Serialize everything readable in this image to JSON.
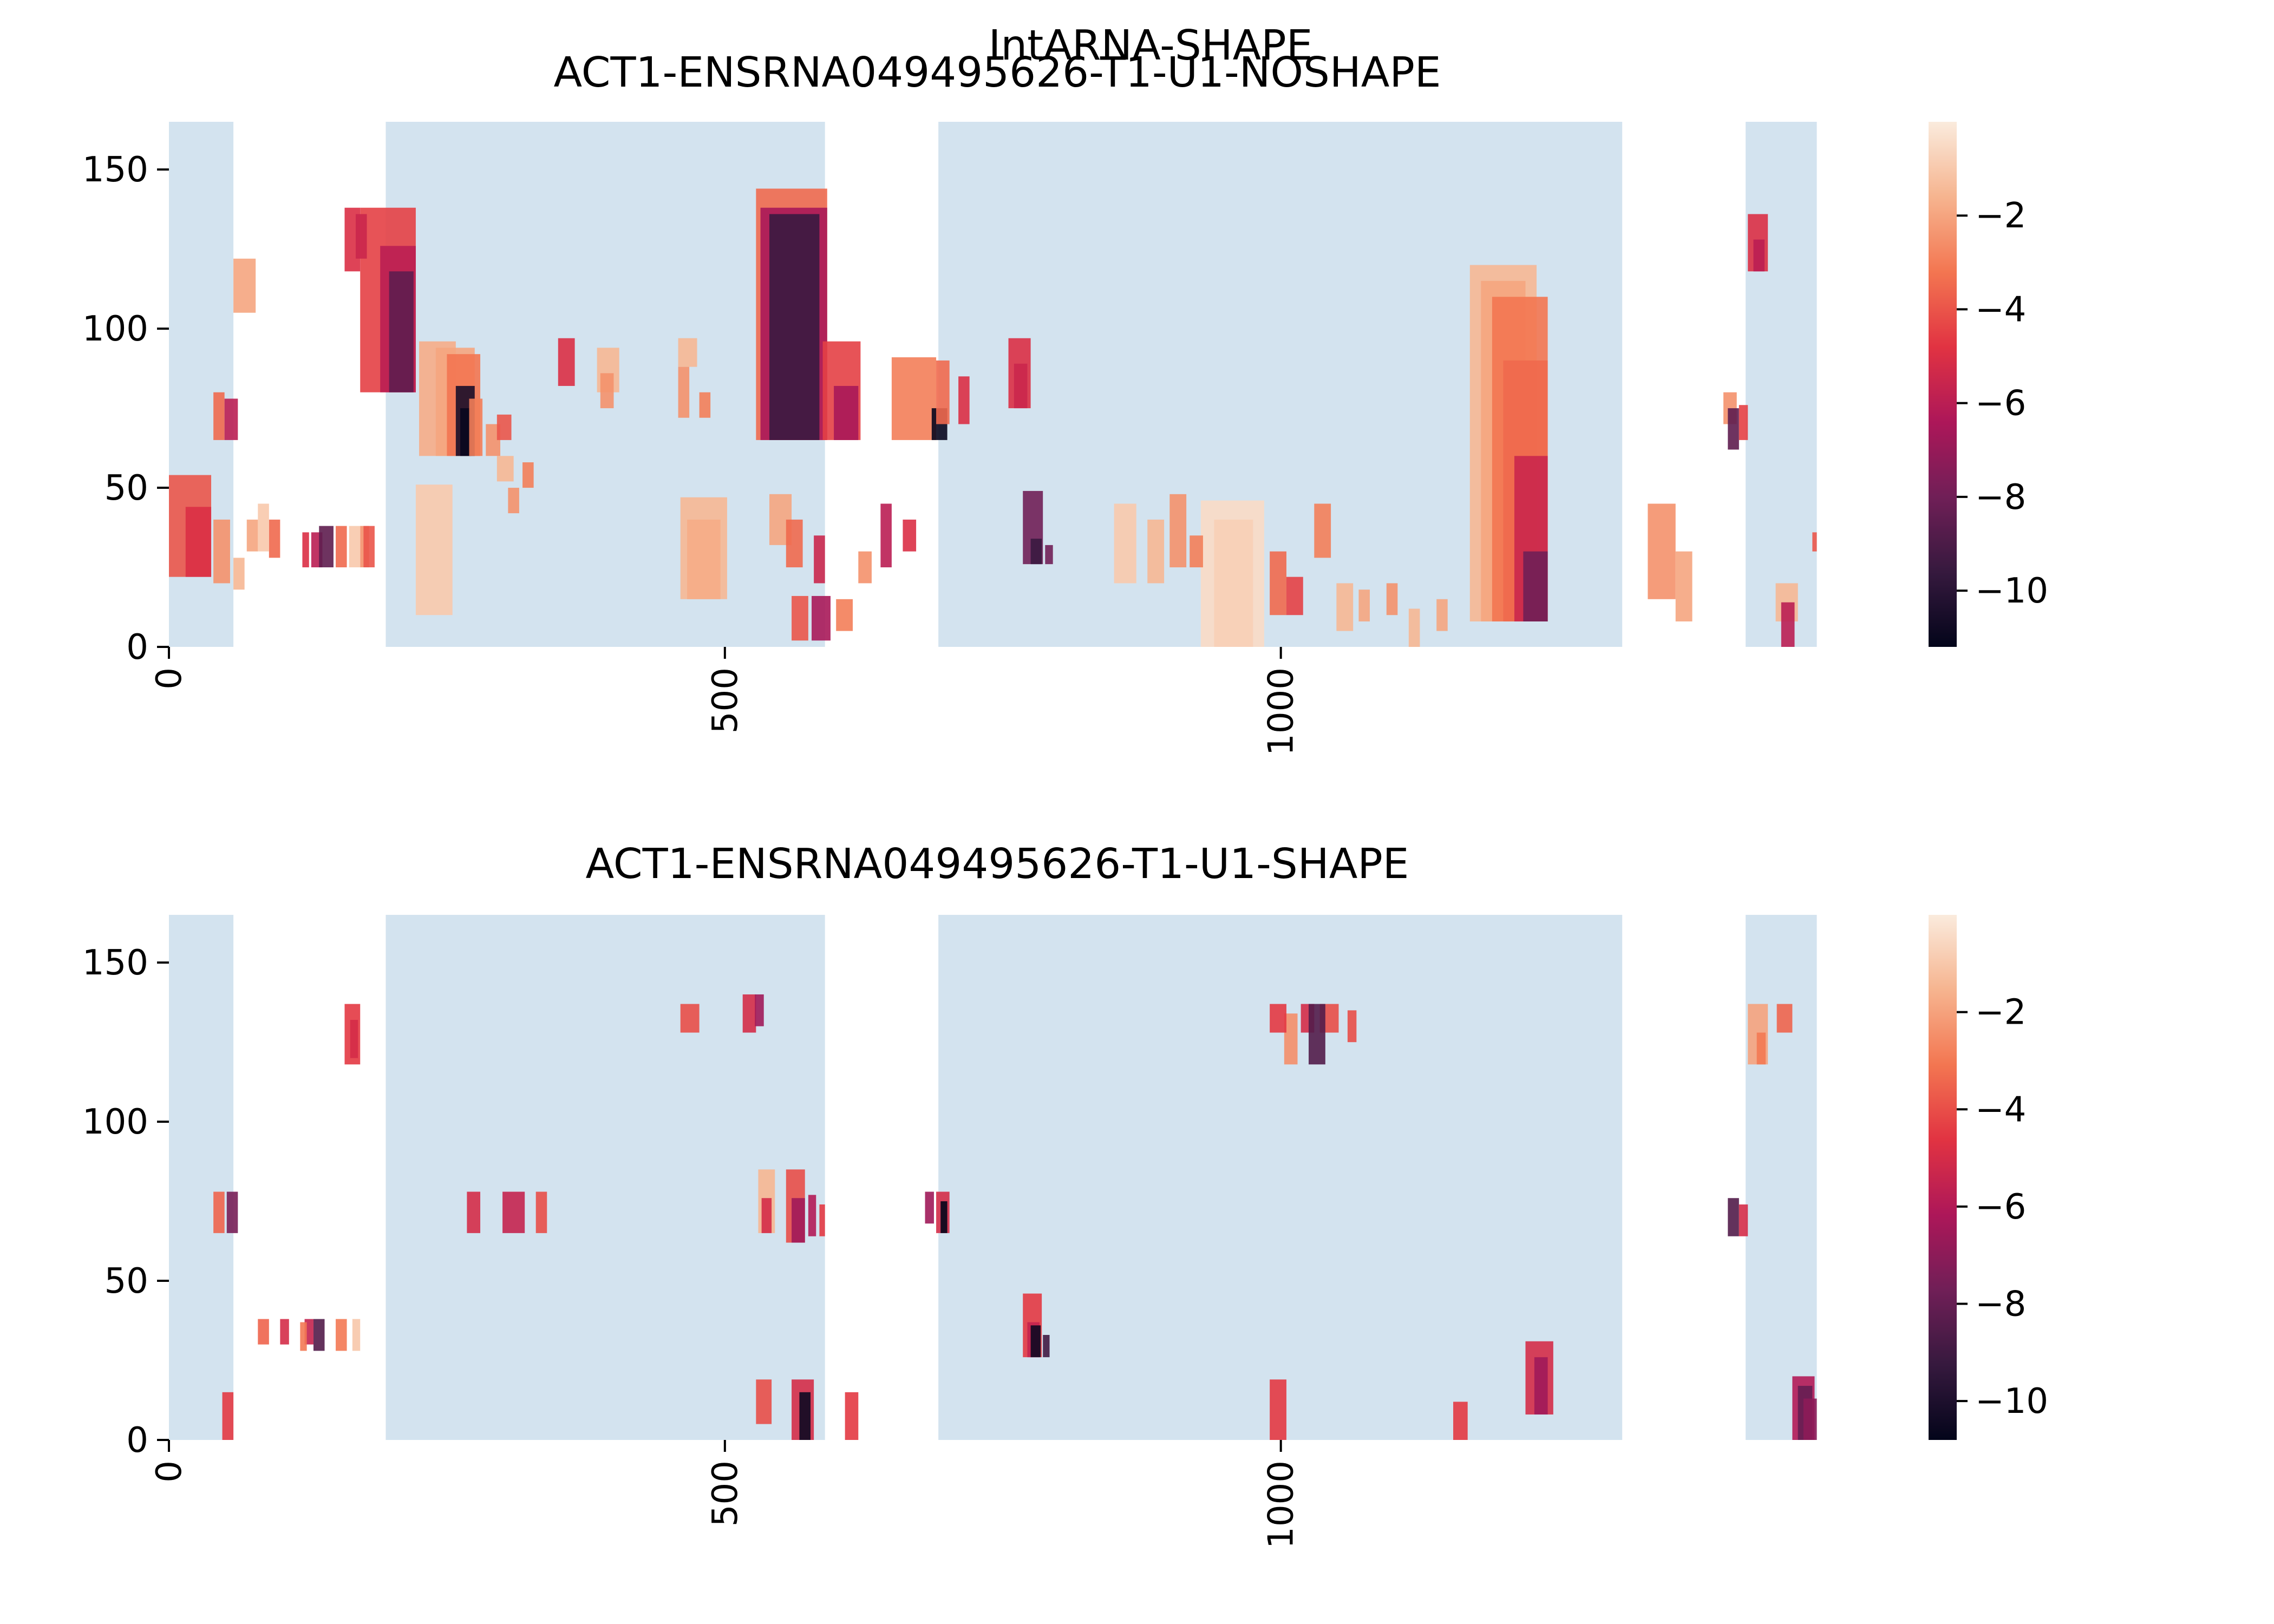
{
  "figure_title": "IntARNA-SHAPE",
  "colors": {
    "region_fill": "#d3e3ef",
    "text": "#000000",
    "colormap": [
      "#03051a",
      "#36193e",
      "#701f57",
      "#ad1759",
      "#e13342",
      "#f37651",
      "#f6b48f",
      "#faebdd"
    ]
  },
  "chart_data": [
    {
      "type": "heatmap",
      "title": "ACT1-ENSRNA049495626-T1-U1-NOSHAPE",
      "xlim": [
        0,
        1490
      ],
      "ylim": [
        0,
        165
      ],
      "xticks": [
        0,
        500,
        1000
      ],
      "yticks": [
        0,
        50,
        100,
        150
      ],
      "colorbar": {
        "min": -11.2,
        "max": 0,
        "ticks": [
          -2,
          -4,
          -6,
          -8,
          -10
        ]
      },
      "regions": [
        [
          0,
          58
        ],
        [
          195,
          590
        ],
        [
          692,
          1307
        ],
        [
          1418,
          1482
        ]
      ],
      "cells": [
        [
          528,
          592,
          65,
          144,
          -3.5
        ],
        [
          532,
          592,
          65,
          138,
          -6.5
        ],
        [
          540,
          585,
          65,
          136,
          -9.5
        ],
        [
          172,
          222,
          80,
          138,
          -4.5
        ],
        [
          190,
          222,
          80,
          126,
          -6.0
        ],
        [
          198,
          220,
          80,
          118,
          -8.5
        ],
        [
          158,
          172,
          118,
          138,
          -5.0
        ],
        [
          168,
          178,
          122,
          136,
          -5.5
        ],
        [
          225,
          258,
          60,
          96,
          -1.8
        ],
        [
          240,
          275,
          60,
          94,
          -2.0
        ],
        [
          250,
          280,
          60,
          92,
          -3.2
        ],
        [
          258,
          275,
          60,
          82,
          -10.5
        ],
        [
          262,
          272,
          60,
          75,
          -11.0
        ],
        [
          270,
          282,
          60,
          78,
          -3.0
        ],
        [
          285,
          298,
          60,
          70,
          -2.5
        ],
        [
          295,
          308,
          65,
          73,
          -4.0
        ],
        [
          588,
          622,
          65,
          96,
          -4.5
        ],
        [
          598,
          620,
          65,
          82,
          -6.5
        ],
        [
          650,
          690,
          65,
          91,
          -3.0
        ],
        [
          686,
          700,
          65,
          75,
          -11.0
        ],
        [
          1170,
          1230,
          8,
          120,
          -1.5
        ],
        [
          1180,
          1220,
          8,
          115,
          -2.0
        ],
        [
          1190,
          1240,
          8,
          110,
          -3.2
        ],
        [
          1200,
          1240,
          8,
          90,
          -3.5
        ],
        [
          1210,
          1240,
          8,
          60,
          -5.5
        ],
        [
          1218,
          1240,
          8,
          30,
          -8.0
        ],
        [
          0,
          38,
          22,
          54,
          -4.0
        ],
        [
          15,
          38,
          22,
          44,
          -5.0
        ],
        [
          222,
          255,
          10,
          51,
          -1.0
        ],
        [
          460,
          502,
          15,
          47,
          -1.5
        ],
        [
          466,
          496,
          15,
          40,
          -1.8
        ],
        [
          928,
          985,
          0,
          46,
          -0.5
        ],
        [
          940,
          975,
          0,
          40,
          -0.8
        ],
        [
          1330,
          1355,
          15,
          45,
          -2.5
        ],
        [
          58,
          78,
          105,
          122,
          -2.0
        ],
        [
          755,
          775,
          75,
          97,
          -5.0
        ],
        [
          760,
          772,
          75,
          89,
          -5.5
        ],
        [
          690,
          702,
          70,
          90,
          -3.5
        ],
        [
          710,
          720,
          70,
          85,
          -5.0
        ],
        [
          768,
          786,
          26,
          49,
          -8.0
        ],
        [
          775,
          785,
          26,
          34,
          -9.5
        ],
        [
          788,
          795,
          26,
          32,
          -8.0
        ],
        [
          458,
          475,
          88,
          97,
          -1.5
        ],
        [
          458,
          468,
          72,
          88,
          -2.5
        ],
        [
          477,
          487,
          72,
          80,
          -3.0
        ],
        [
          540,
          560,
          32,
          48,
          -2.0
        ],
        [
          555,
          570,
          25,
          40,
          -3.5
        ],
        [
          580,
          590,
          20,
          35,
          -5.5
        ],
        [
          578,
          595,
          2,
          16,
          -6.5
        ],
        [
          560,
          575,
          2,
          16,
          -4.0
        ],
        [
          385,
          405,
          80,
          94,
          -1.5
        ],
        [
          388,
          400,
          75,
          86,
          -2.5
        ],
        [
          350,
          365,
          82,
          97,
          -5.0
        ],
        [
          1355,
          1370,
          8,
          30,
          -2.0
        ],
        [
          1398,
          1410,
          70,
          80,
          -2.5
        ],
        [
          1420,
          1438,
          118,
          136,
          -5.0
        ],
        [
          1425,
          1435,
          118,
          128,
          -6.0
        ],
        [
          1445,
          1465,
          8,
          20,
          -1.5
        ],
        [
          1450,
          1462,
          0,
          14,
          -6.0
        ],
        [
          1478,
          1482,
          30,
          36,
          -4.0
        ],
        [
          1402,
          1412,
          62,
          75,
          -8.5
        ],
        [
          1412,
          1420,
          65,
          76,
          -4.5
        ],
        [
          120,
          126,
          25,
          36,
          -5.0
        ],
        [
          128,
          138,
          25,
          36,
          -6.0
        ],
        [
          135,
          148,
          25,
          38,
          -8.5
        ],
        [
          150,
          160,
          25,
          38,
          -3.5
        ],
        [
          162,
          172,
          25,
          38,
          -1.0
        ],
        [
          172,
          180,
          25,
          38,
          -2.5
        ],
        [
          90,
          100,
          28,
          40,
          -3.5
        ],
        [
          80,
          90,
          30,
          45,
          -1.0
        ],
        [
          70,
          80,
          30,
          40,
          -2.0
        ],
        [
          40,
          55,
          20,
          40,
          -2.5
        ],
        [
          58,
          68,
          18,
          28,
          -1.5
        ],
        [
          40,
          50,
          65,
          80,
          -3.5
        ],
        [
          50,
          62,
          65,
          78,
          -6.0
        ],
        [
          175,
          185,
          25,
          38,
          -4.0
        ],
        [
          295,
          310,
          52,
          60,
          -1.5
        ],
        [
          305,
          315,
          42,
          50,
          -2.5
        ],
        [
          318,
          328,
          50,
          58,
          -3.0
        ],
        [
          600,
          615,
          5,
          15,
          -3.0
        ],
        [
          620,
          632,
          20,
          30,
          -2.5
        ],
        [
          640,
          650,
          25,
          45,
          -6.0
        ],
        [
          660,
          672,
          30,
          40,
          -5.0
        ],
        [
          850,
          870,
          20,
          45,
          -1.0
        ],
        [
          880,
          895,
          20,
          40,
          -1.5
        ],
        [
          900,
          915,
          25,
          48,
          -2.5
        ],
        [
          918,
          930,
          25,
          35,
          -3.0
        ],
        [
          990,
          1005,
          10,
          30,
          -3.5
        ],
        [
          1005,
          1020,
          10,
          22,
          -4.5
        ],
        [
          1030,
          1045,
          28,
          45,
          -3.0
        ],
        [
          1050,
          1065,
          5,
          20,
          -1.5
        ],
        [
          1070,
          1080,
          8,
          18,
          -2.0
        ],
        [
          1095,
          1105,
          10,
          20,
          -2.5
        ],
        [
          1115,
          1125,
          0,
          12,
          -1.5
        ],
        [
          1140,
          1150,
          5,
          15,
          -2.0
        ]
      ]
    },
    {
      "type": "heatmap",
      "title": "ACT1-ENSRNA049495626-T1-U1-SHAPE",
      "xlim": [
        0,
        1490
      ],
      "ylim": [
        0,
        165
      ],
      "xticks": [
        0,
        500,
        1000
      ],
      "yticks": [
        0,
        50,
        100,
        150
      ],
      "colorbar": {
        "min": -10.8,
        "max": 0,
        "ticks": [
          -2,
          -4,
          -6,
          -8,
          -10
        ]
      },
      "regions": [
        [
          0,
          58
        ],
        [
          195,
          590
        ],
        [
          692,
          1307
        ],
        [
          1418,
          1482
        ]
      ],
      "cells": [
        [
          158,
          172,
          118,
          137,
          -4.5
        ],
        [
          163,
          170,
          120,
          132,
          -5.0
        ],
        [
          130,
          140,
          28,
          38,
          -8.5
        ],
        [
          122,
          130,
          30,
          38,
          -5.5
        ],
        [
          118,
          124,
          28,
          37,
          -3.0
        ],
        [
          100,
          108,
          30,
          38,
          -5.0
        ],
        [
          80,
          90,
          30,
          38,
          -3.5
        ],
        [
          150,
          160,
          28,
          38,
          -3.0
        ],
        [
          165,
          172,
          28,
          38,
          -1.0
        ],
        [
          40,
          50,
          65,
          78,
          -3.5
        ],
        [
          52,
          62,
          65,
          78,
          -7.5
        ],
        [
          48,
          58,
          0,
          15,
          -4.5
        ],
        [
          555,
          572,
          62,
          85,
          -4.0
        ],
        [
          560,
          572,
          62,
          76,
          -6.5
        ],
        [
          575,
          582,
          64,
          77,
          -6.0
        ],
        [
          585,
          590,
          64,
          74,
          -4.5
        ],
        [
          690,
          702,
          65,
          78,
          -5.0
        ],
        [
          694,
          700,
          65,
          75,
          -11.0
        ],
        [
          680,
          688,
          68,
          78,
          -6.5
        ],
        [
          768,
          785,
          26,
          46,
          -4.5
        ],
        [
          772,
          783,
          26,
          37,
          -5.5
        ],
        [
          775,
          784,
          26,
          36,
          -10.5
        ],
        [
          786,
          792,
          26,
          33,
          -9.0
        ],
        [
          1220,
          1245,
          8,
          31,
          -5.0
        ],
        [
          1228,
          1240,
          8,
          26,
          -6.5
        ],
        [
          1460,
          1480,
          0,
          20,
          -6.0
        ],
        [
          1465,
          1478,
          0,
          17,
          -8.0
        ],
        [
          1470,
          1482,
          0,
          13,
          -7.0
        ],
        [
          1420,
          1438,
          118,
          137,
          -2.0
        ],
        [
          1428,
          1436,
          118,
          128,
          -3.0
        ],
        [
          1446,
          1460,
          128,
          137,
          -3.5
        ],
        [
          1402,
          1412,
          64,
          76,
          -8.5
        ],
        [
          1412,
          1420,
          64,
          74,
          -5.0
        ],
        [
          560,
          580,
          0,
          19,
          -5.0
        ],
        [
          567,
          577,
          0,
          15,
          -10.5
        ],
        [
          608,
          620,
          0,
          15,
          -4.5
        ],
        [
          528,
          542,
          5,
          19,
          -4.0
        ],
        [
          990,
          1005,
          0,
          19,
          -4.5
        ],
        [
          1155,
          1168,
          0,
          12,
          -4.5
        ],
        [
          300,
          320,
          65,
          78,
          -5.5
        ],
        [
          330,
          340,
          65,
          78,
          -4.0
        ],
        [
          268,
          280,
          65,
          78,
          -5.0
        ],
        [
          530,
          545,
          65,
          85,
          -1.5
        ],
        [
          533,
          542,
          65,
          76,
          -5.0
        ],
        [
          460,
          477,
          128,
          137,
          -4.0
        ],
        [
          516,
          528,
          128,
          140,
          -5.0
        ],
        [
          527,
          535,
          130,
          140,
          -6.5
        ],
        [
          1035,
          1052,
          128,
          137,
          -4.0
        ],
        [
          1018,
          1030,
          128,
          137,
          -5.0
        ],
        [
          1025,
          1040,
          118,
          137,
          -8.5
        ],
        [
          1003,
          1015,
          118,
          134,
          -2.5
        ],
        [
          990,
          1005,
          128,
          137,
          -4.5
        ],
        [
          1060,
          1068,
          125,
          135,
          -4.0
        ]
      ]
    }
  ]
}
